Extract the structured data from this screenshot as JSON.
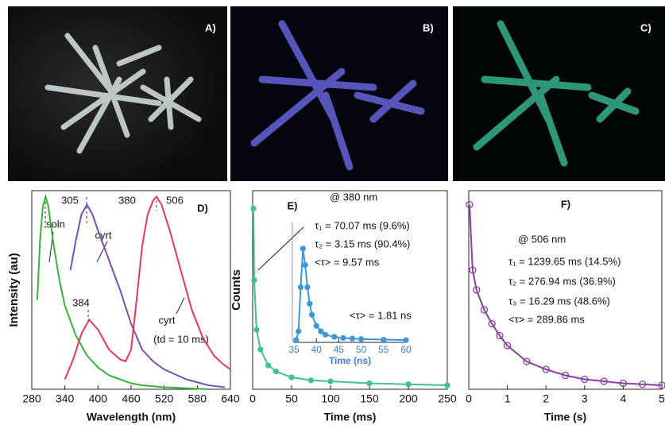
{
  "photo_labels": [
    "A)",
    "B)",
    "C)"
  ],
  "chart_data": [
    {
      "type": "line",
      "title": "D)",
      "xlabel": "Wavelength (nm)",
      "ylabel": "Intensity (au)",
      "xlim": [
        280,
        640
      ],
      "xticks": [
        280,
        340,
        400,
        460,
        520,
        580,
        640
      ],
      "ylim": [
        0,
        1
      ],
      "annotations": [
        "305",
        "380",
        "384",
        "506",
        "(td = 10 ms)"
      ],
      "series": [
        {
          "name": "soln",
          "color": "#3cb03c",
          "x": [
            290,
            295,
            300,
            305,
            310,
            320,
            330,
            340,
            360,
            380,
            400,
            420,
            440,
            460,
            480,
            520,
            560,
            600
          ],
          "values": [
            0.45,
            0.75,
            0.92,
            0.97,
            0.92,
            0.72,
            0.55,
            0.42,
            0.27,
            0.17,
            0.11,
            0.07,
            0.05,
            0.03,
            0.02,
            0.01,
            0.005,
            0.0
          ]
        },
        {
          "name": "cyrt",
          "color": "#7b4fb0",
          "x": [
            350,
            360,
            370,
            380,
            390,
            400,
            420,
            440,
            460,
            480,
            500,
            520,
            560,
            600,
            630
          ],
          "values": [
            0.6,
            0.75,
            0.88,
            0.93,
            0.88,
            0.8,
            0.65,
            0.5,
            0.33,
            0.2,
            0.14,
            0.1,
            0.05,
            0.02,
            0.01
          ]
        },
        {
          "name": "cyrt",
          "color": "#e8365a",
          "x": [
            340,
            355,
            370,
            384,
            400,
            420,
            440,
            450,
            460,
            470,
            480,
            490,
            500,
            506,
            515,
            530,
            550,
            570,
            590,
            610,
            625,
            640
          ],
          "values": [
            0.05,
            0.15,
            0.28,
            0.35,
            0.3,
            0.2,
            0.15,
            0.14,
            0.2,
            0.45,
            0.72,
            0.88,
            0.95,
            0.97,
            0.93,
            0.8,
            0.6,
            0.4,
            0.26,
            0.17,
            0.13,
            0.1
          ]
        }
      ]
    },
    {
      "type": "line",
      "title": "E)",
      "xlabel": "Time (ms)",
      "ylabel": "Counts",
      "xlim": [
        0,
        250
      ],
      "xticks": [
        0,
        50,
        100,
        150,
        200,
        250
      ],
      "ylim": [
        0,
        1
      ],
      "annotations": [
        "@ 380 nm",
        "τ₁ = 70.07 ms (9.6%)",
        "τ₂ = 3.15   ms (90.4%)",
        "<τ> = 9.57 ms"
      ],
      "series": [
        {
          "color": "#3fbf9a",
          "x": [
            1,
            2,
            5,
            10,
            20,
            30,
            50,
            75,
            100,
            150,
            200,
            250
          ],
          "values": [
            0.91,
            0.55,
            0.3,
            0.2,
            0.12,
            0.09,
            0.06,
            0.045,
            0.04,
            0.03,
            0.025,
            0.02
          ]
        }
      ]
    },
    {
      "type": "line",
      "xlabel": "Time (ns)",
      "xlim": [
        35,
        60
      ],
      "xticks": [
        35,
        40,
        45,
        50,
        55,
        60
      ],
      "ylim": [
        0,
        1
      ],
      "annotations": [
        "<τ> = 1.81 ns"
      ],
      "series": [
        {
          "color": "#3a9ad9",
          "x": [
            35.5,
            36,
            36.5,
            37,
            37.5,
            38,
            38.5,
            39,
            40,
            41,
            42,
            44,
            46,
            48,
            50,
            55,
            60
          ],
          "values": [
            0.02,
            0.1,
            0.5,
            0.85,
            0.7,
            0.5,
            0.35,
            0.25,
            0.15,
            0.1,
            0.07,
            0.05,
            0.04,
            0.035,
            0.03,
            0.025,
            0.02
          ]
        }
      ]
    },
    {
      "type": "scatter",
      "title": "F)",
      "xlabel": "Time (s)",
      "xlim": [
        0,
        5
      ],
      "xticks": [
        0,
        1,
        2,
        3,
        4,
        5
      ],
      "ylim": [
        0,
        1
      ],
      "annotations": [
        "@ 506 nm",
        "τ₁ = 1239.65 ms (14.5%)",
        "τ₂ =   276.94 ms (36.9%)",
        "τ₃ =     16.29 ms (48.6%)",
        "<τ> = 289.86 ms"
      ],
      "series": [
        {
          "color": "#8a3fa0",
          "x": [
            0.02,
            0.1,
            0.2,
            0.4,
            0.6,
            0.8,
            1,
            1.5,
            2,
            2.5,
            3,
            3.5,
            4,
            4.5,
            5
          ],
          "values": [
            0.93,
            0.6,
            0.5,
            0.4,
            0.33,
            0.27,
            0.22,
            0.14,
            0.1,
            0.07,
            0.05,
            0.04,
            0.03,
            0.025,
            0.02
          ]
        }
      ]
    }
  ]
}
